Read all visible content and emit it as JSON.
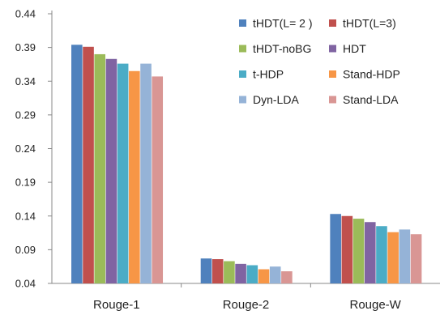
{
  "chart_data": {
    "type": "bar",
    "title": "",
    "xlabel": "",
    "ylabel": "",
    "categories": [
      "Rouge-1",
      "Rouge-2",
      "Rouge-W"
    ],
    "ylim": [
      0.04,
      0.44
    ],
    "yticks": [
      "0.04",
      "0.09",
      "0.14",
      "0.19",
      "0.24",
      "0.29",
      "0.34",
      "0.39",
      "0.44"
    ],
    "grid": false,
    "legend_position": "top-right",
    "series": [
      {
        "name": "tHDT(L= 2 )",
        "color": "#4f81bd",
        "values": [
          0.394,
          0.077,
          0.143
        ]
      },
      {
        "name": "tHDT(L=3)",
        "color": "#c0504d",
        "values": [
          0.391,
          0.076,
          0.14
        ]
      },
      {
        "name": "tHDT-noBG",
        "color": "#9bbb59",
        "values": [
          0.38,
          0.073,
          0.136
        ]
      },
      {
        "name": "HDT",
        "color": "#8064a2",
        "values": [
          0.373,
          0.069,
          0.131
        ]
      },
      {
        "name": "t-HDP",
        "color": "#4bacc6",
        "values": [
          0.366,
          0.067,
          0.125
        ]
      },
      {
        "name": "Stand-HDP",
        "color": "#f79646",
        "values": [
          0.355,
          0.061,
          0.116
        ]
      },
      {
        "name": "Dyn-LDA",
        "color": "#95b3d7",
        "values": [
          0.366,
          0.065,
          0.12
        ]
      },
      {
        "name": "Stand-LDA",
        "color": "#d99694",
        "values": [
          0.347,
          0.058,
          0.113
        ]
      }
    ]
  }
}
